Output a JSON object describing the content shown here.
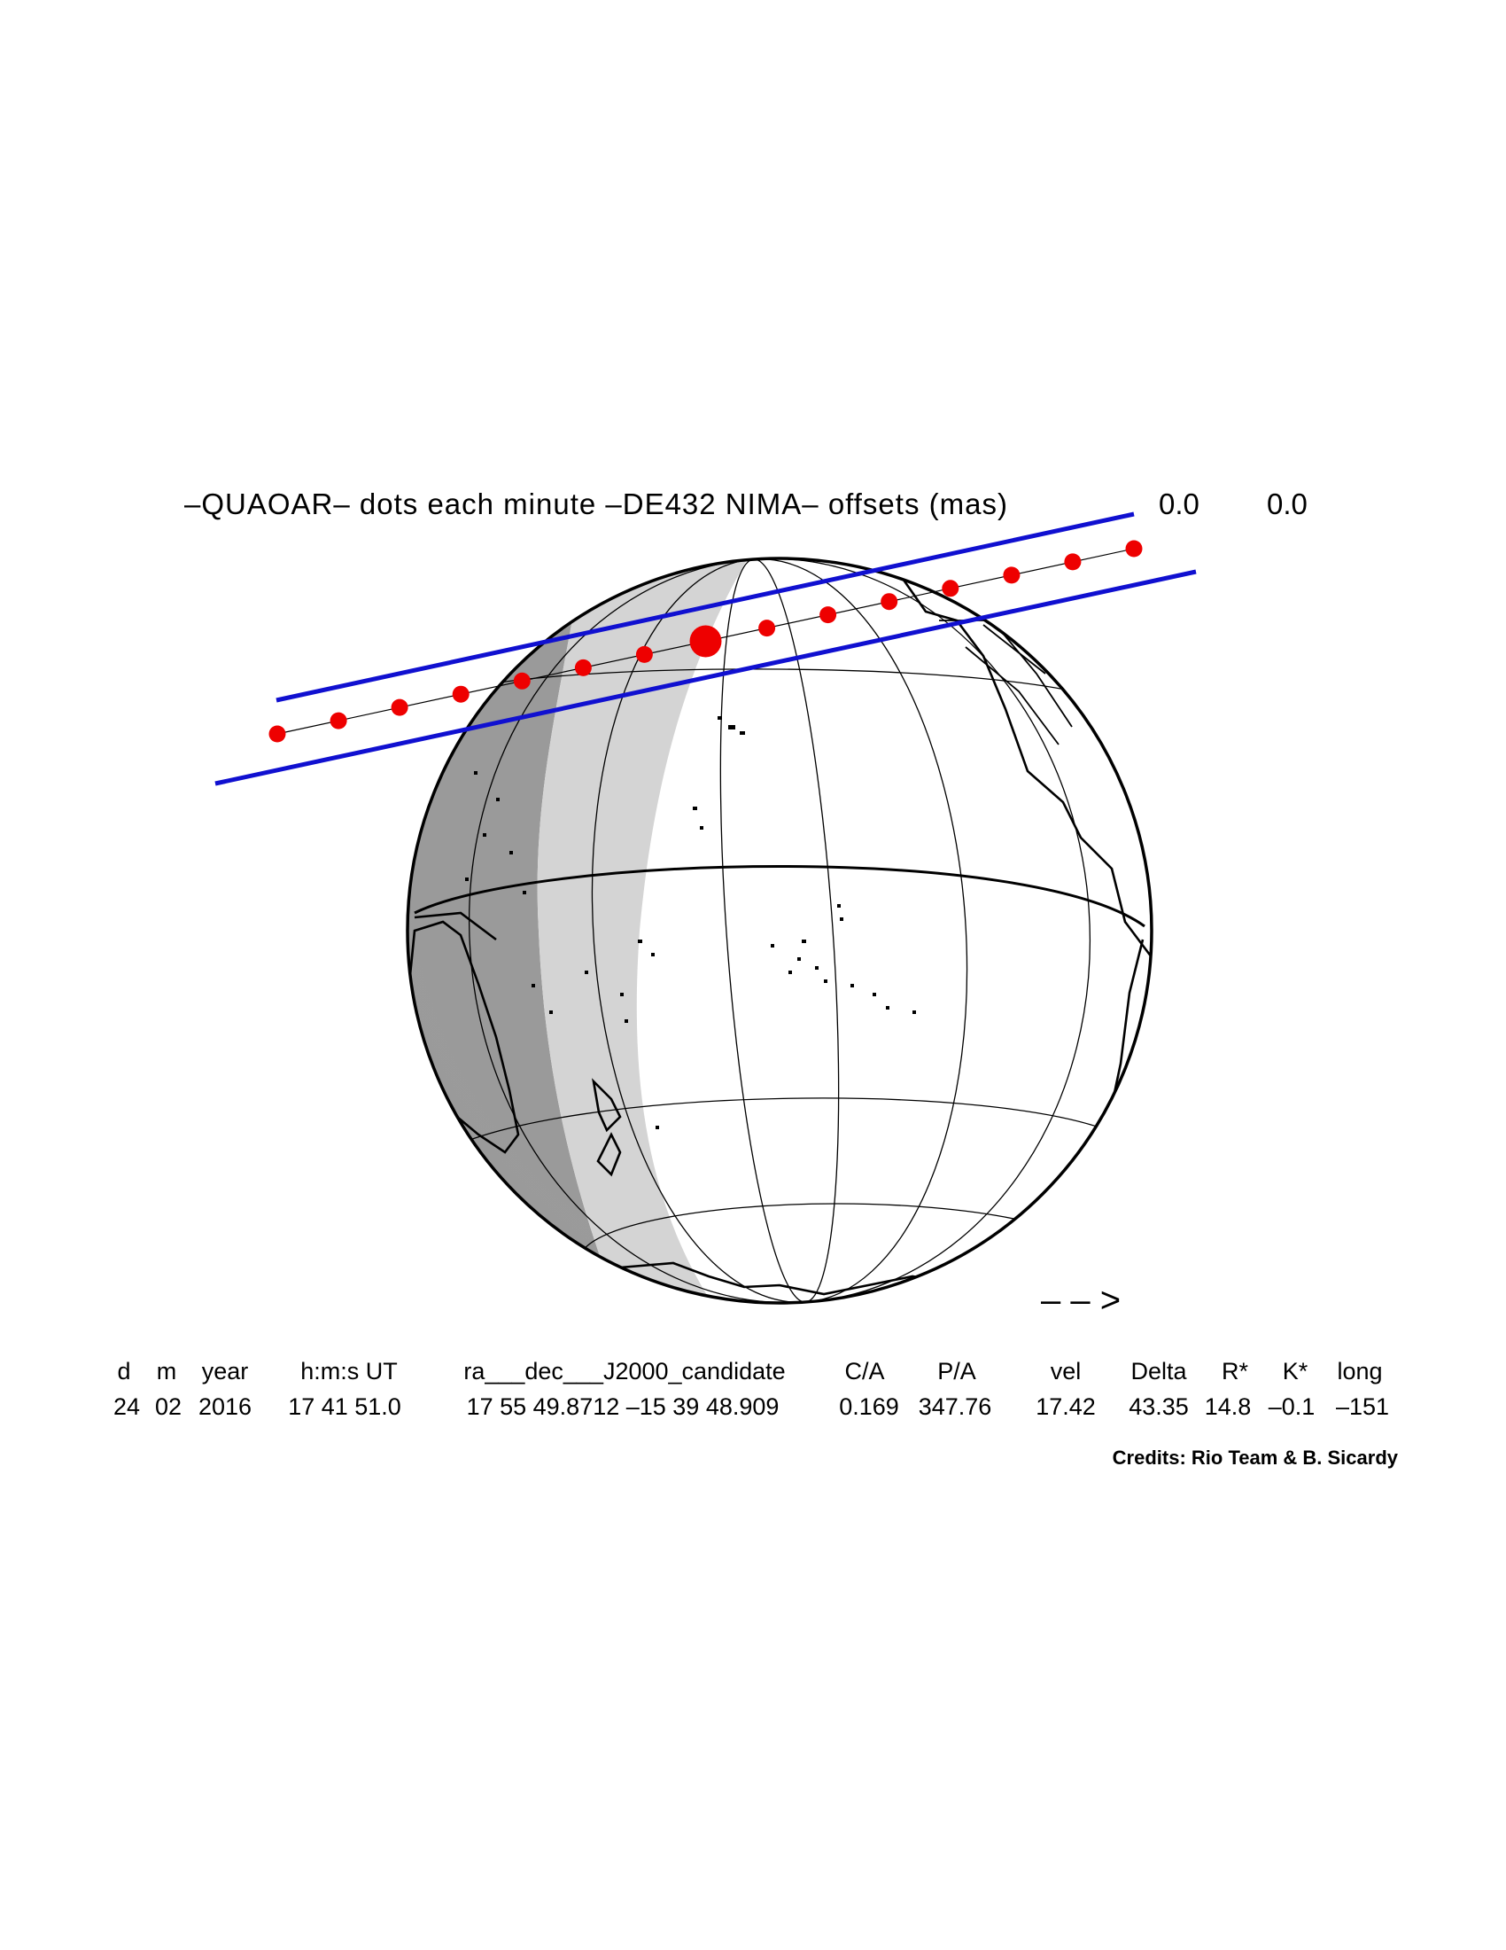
{
  "title": "–QUAOAR– dots each minute –DE432 NIMA– offsets (mas)",
  "offsets": [
    "0.0",
    "0.0"
  ],
  "direction_arrow": "– – >",
  "table": {
    "headers": [
      "d",
      "m",
      "year",
      "h:m:s UT",
      "ra___dec___J2000_candidate",
      "C/A",
      "P/A",
      "vel",
      "Delta",
      "R*",
      "K*",
      "long"
    ],
    "values": [
      "24",
      "02",
      "2016",
      "17 41 51.0",
      "17 55 49.8712 –15 39 48.909",
      "0.169",
      "347.76",
      "17.42",
      "43.35",
      "14.8",
      "–0.1",
      "–151"
    ]
  },
  "credits": "Credits: Rio Team & B. Sicardy",
  "colors": {
    "limit_lines": "#1010d0",
    "dots": "#ee0000",
    "night": "#9a9a9a",
    "twilight": "#d4d4d4",
    "coast": "#000000"
  },
  "path": {
    "dot_count": 15,
    "closest_approach_index": 7
  }
}
